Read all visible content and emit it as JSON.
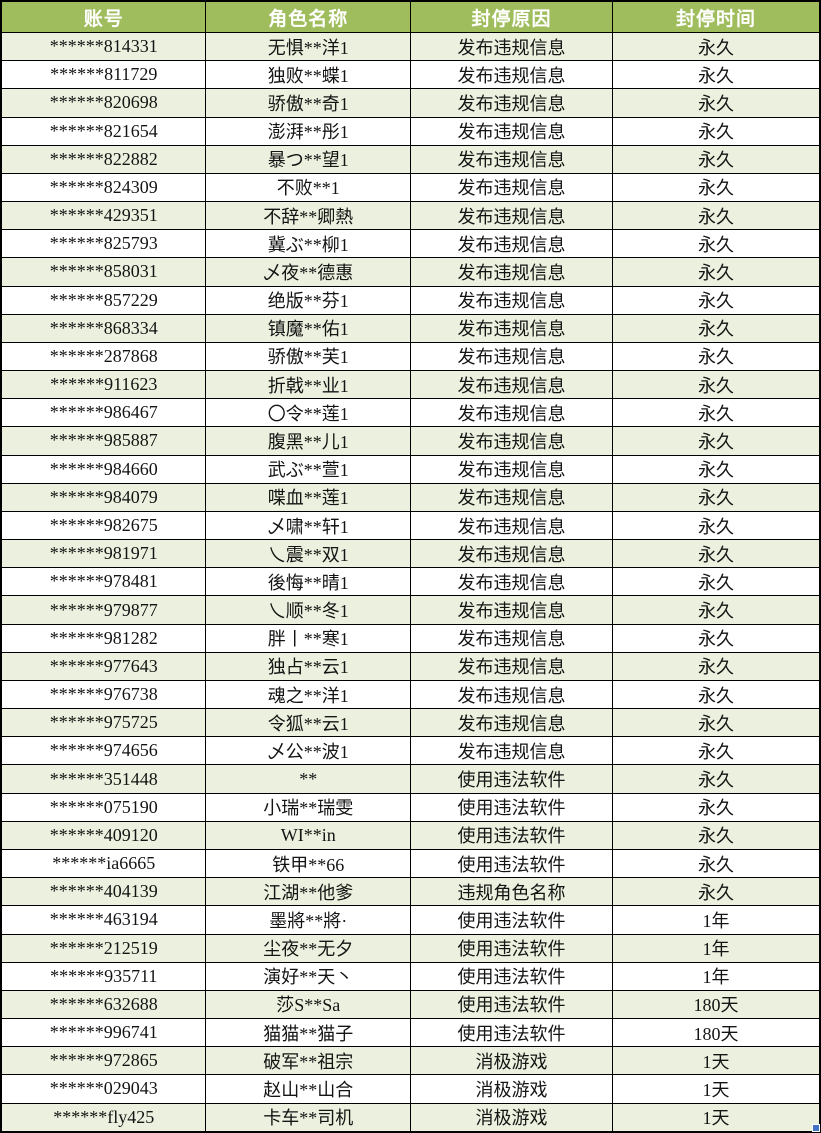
{
  "colors": {
    "header_bg": "#9fbd5c",
    "header_text": "#ffffff",
    "row_alt_bg": "#ebf1de",
    "row_bg": "#ffffff",
    "border": "#000000",
    "fill_handle": "#4472c4"
  },
  "table": {
    "columns": [
      {
        "key": "account",
        "label": "账号",
        "width": "25%"
      },
      {
        "key": "name",
        "label": "角色名称",
        "width": "25%"
      },
      {
        "key": "reason",
        "label": "封停原因",
        "width": "24.7%"
      },
      {
        "key": "duration",
        "label": "封停时间",
        "width": "25.3%"
      }
    ],
    "rows": [
      {
        "account": "******814331",
        "name": "无惧**洋1",
        "reason": "发布违规信息",
        "duration": "永久"
      },
      {
        "account": "******811729",
        "name": "独败**蝶1",
        "reason": "发布违规信息",
        "duration": "永久"
      },
      {
        "account": "******820698",
        "name": "骄傲**奇1",
        "reason": "发布违规信息",
        "duration": "永久"
      },
      {
        "account": "******821654",
        "name": "澎湃**彤1",
        "reason": "发布违规信息",
        "duration": "永久"
      },
      {
        "account": "******822882",
        "name": "暴つ**望1",
        "reason": "发布违规信息",
        "duration": "永久"
      },
      {
        "account": "******824309",
        "name": "不败**1",
        "reason": "发布违规信息",
        "duration": "永久"
      },
      {
        "account": "******429351",
        "name": "不辞**卿熱",
        "reason": "发布违规信息",
        "duration": "永久"
      },
      {
        "account": "******825793",
        "name": "冀ぶ**柳1",
        "reason": "发布违规信息",
        "duration": "永久"
      },
      {
        "account": "******858031",
        "name": "乄夜**德惠",
        "reason": "发布违规信息",
        "duration": "永久"
      },
      {
        "account": "******857229",
        "name": "绝版**芬1",
        "reason": "发布违规信息",
        "duration": "永久"
      },
      {
        "account": "******868334",
        "name": "镇魔**佑1",
        "reason": "发布违规信息",
        "duration": "永久"
      },
      {
        "account": "******287868",
        "name": "骄傲**芙1",
        "reason": "发布违规信息",
        "duration": "永久"
      },
      {
        "account": "******911623",
        "name": "折戟**业1",
        "reason": "发布违规信息",
        "duration": "永久"
      },
      {
        "account": "******986467",
        "name": "〇令**莲1",
        "reason": "发布违规信息",
        "duration": "永久"
      },
      {
        "account": "******985887",
        "name": "腹黑**儿1",
        "reason": "发布违规信息",
        "duration": "永久"
      },
      {
        "account": "******984660",
        "name": "武ぶ**萱1",
        "reason": "发布违规信息",
        "duration": "永久"
      },
      {
        "account": "******984079",
        "name": "喋血**莲1",
        "reason": "发布违规信息",
        "duration": "永久"
      },
      {
        "account": "******982675",
        "name": "乄啸**轩1",
        "reason": "发布违规信息",
        "duration": "永久"
      },
      {
        "account": "******981971",
        "name": "乀震**双1",
        "reason": "发布违规信息",
        "duration": "永久"
      },
      {
        "account": "******978481",
        "name": "後悔**晴1",
        "reason": "发布违规信息",
        "duration": "永久"
      },
      {
        "account": "******979877",
        "name": "乀顺**冬1",
        "reason": "发布违规信息",
        "duration": "永久"
      },
      {
        "account": "******981282",
        "name": "胖丨**寒1",
        "reason": "发布违规信息",
        "duration": "永久"
      },
      {
        "account": "******977643",
        "name": "独占**云1",
        "reason": "发布违规信息",
        "duration": "永久"
      },
      {
        "account": "******976738",
        "name": "魂之**洋1",
        "reason": "发布违规信息",
        "duration": "永久"
      },
      {
        "account": "******975725",
        "name": "令狐**云1",
        "reason": "发布违规信息",
        "duration": "永久"
      },
      {
        "account": "******974656",
        "name": "乄公**波1",
        "reason": "发布违规信息",
        "duration": "永久"
      },
      {
        "account": "******351448",
        "name": "**",
        "reason": "使用违法软件",
        "duration": "永久"
      },
      {
        "account": "******075190",
        "name": "小瑞**瑞雯",
        "reason": "使用违法软件",
        "duration": "永久"
      },
      {
        "account": "******409120",
        "name": "WI**in",
        "reason": "使用违法软件",
        "duration": "永久"
      },
      {
        "account": "******ia6665",
        "name": "铁甲**66",
        "reason": "使用违法软件",
        "duration": "永久"
      },
      {
        "account": "******404139",
        "name": "江湖**他爹",
        "reason": "违规角色名称",
        "duration": "永久"
      },
      {
        "account": "******463194",
        "name": "墨將**將·",
        "reason": "使用违法软件",
        "duration": "1年"
      },
      {
        "account": "******212519",
        "name": "尘夜**无夕",
        "reason": "使用违法软件",
        "duration": "1年"
      },
      {
        "account": "******935711",
        "name": "演好**天丶",
        "reason": "使用违法软件",
        "duration": "1年"
      },
      {
        "account": "******632688",
        "name": "莎S**Sa",
        "reason": "使用违法软件",
        "duration": "180天"
      },
      {
        "account": "******996741",
        "name": "猫猫**猫子",
        "reason": "使用违法软件",
        "duration": "180天"
      },
      {
        "account": "******972865",
        "name": "破军**祖宗",
        "reason": "消极游戏",
        "duration": "1天"
      },
      {
        "account": "******029043",
        "name": "赵山**山合",
        "reason": "消极游戏",
        "duration": "1天"
      },
      {
        "account": "******fly425",
        "name": "卡车**司机",
        "reason": "消极游戏",
        "duration": "1天"
      }
    ]
  }
}
